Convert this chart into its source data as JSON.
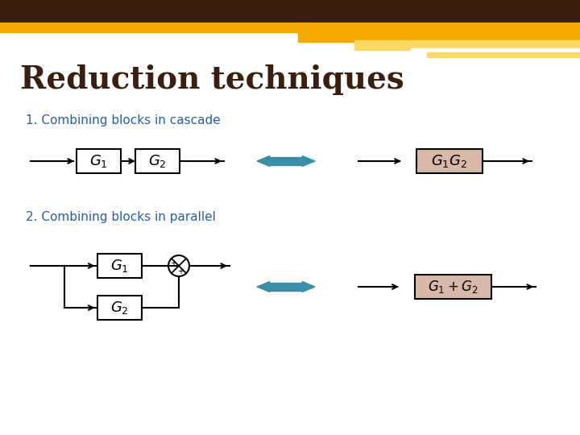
{
  "title": "Reduction techniques",
  "subtitle1": "1. Combining blocks in cascade",
  "subtitle2": "2. Combining blocks in parallel",
  "title_color": "#3B1F0E",
  "subtitle_color": "#2B5EA7",
  "bg_color": "#FFFFFF",
  "header_dark": "#3B1F0E",
  "header_gold": "#F5A800",
  "header_light_gold": "#FFD966",
  "block_fill_white": "#FFFFFF",
  "block_fill_pink": "#D9B8A8",
  "arrow_color": "#3B8EA5",
  "line_color": "#000000",
  "box_edge": "#000000"
}
